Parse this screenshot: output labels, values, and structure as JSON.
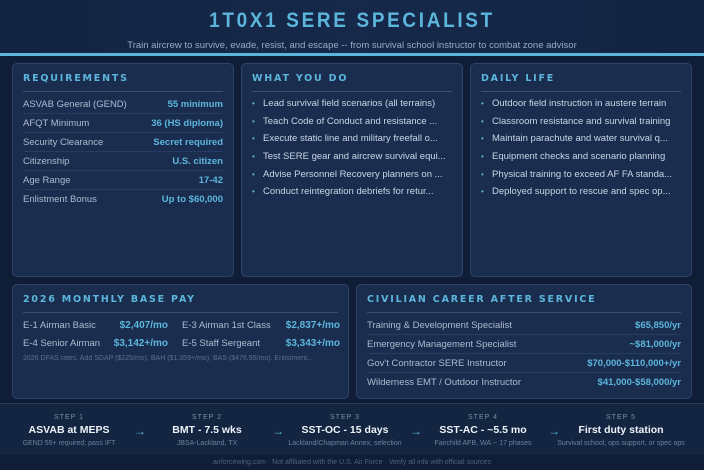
{
  "header": {
    "title": "1T0X1 SERE SPECIALIST",
    "subtitle": "Train aircrew to survive, evade, resist, and escape -- from survival school instructor to combat zone advisor"
  },
  "requirements": {
    "title": "REQUIREMENTS",
    "rows": [
      {
        "k": "ASVAB General (GEND)",
        "v": "55 minimum"
      },
      {
        "k": "AFQT Minimum",
        "v": "36 (HS diploma)"
      },
      {
        "k": "Security Clearance",
        "v": "Secret required"
      },
      {
        "k": "Citizenship",
        "v": "U.S. citizen"
      },
      {
        "k": "Age Range",
        "v": "17-42"
      },
      {
        "k": "Enlistment Bonus",
        "v": "Up to $60,000"
      }
    ]
  },
  "what_you_do": {
    "title": "WHAT YOU DO",
    "items": [
      "Lead survival field scenarios (all terrains)",
      "Teach Code of Conduct and resistance ...",
      "Execute static line and military freefall o...",
      "Test SERE gear and aircrew survival equi...",
      "Advise Personnel Recovery planners on ...",
      "Conduct reintegration debriefs for retur..."
    ]
  },
  "daily_life": {
    "title": "DAILY LIFE",
    "items": [
      "Outdoor field instruction in austere terrain",
      "Classroom resistance and survival training",
      "Maintain parachute and water survival q...",
      "Equipment checks and scenario planning",
      "Physical training to exceed AF FA standa...",
      "Deployed support to rescue and spec op..."
    ]
  },
  "pay": {
    "title": "2026 MONTHLY BASE PAY",
    "rows": [
      {
        "k": "E-1 Airman Basic",
        "v": "$2,407/mo"
      },
      {
        "k": "E-3 Airman 1st Class",
        "v": "$2,837+/mo"
      },
      {
        "k": "E-4 Senior Airman",
        "v": "$3,142+/mo"
      },
      {
        "k": "E-5 Staff Sergeant",
        "v": "$3,343+/mo"
      }
    ],
    "note": "2026 DFAS rates. Add SDAP ($225/mo), BAH ($1,359+/mo), BAS ($476.95/mo). Enlistment..."
  },
  "civilian": {
    "title": "CIVILIAN CAREER AFTER SERVICE",
    "rows": [
      {
        "k": "Training & Development Specialist",
        "v": "$65,850/yr"
      },
      {
        "k": "Emergency Management Specialist",
        "v": "~$81,000/yr"
      },
      {
        "k": "Gov't Contractor SERE Instructor",
        "v": "$70,000-$110,000+/yr"
      },
      {
        "k": "Wilderness EMT / Outdoor Instructor",
        "v": "$41,000-$58,000/yr"
      }
    ]
  },
  "steps": [
    {
      "label": "STEP 1",
      "title": "ASVAB at MEPS",
      "desc": "GEND 55+ required; pass IFT"
    },
    {
      "label": "STEP 2",
      "title": "BMT - 7.5 wks",
      "desc": "JBSA-Lackland, TX"
    },
    {
      "label": "STEP 3",
      "title": "SST-OC - 15 days",
      "desc": "Lackland/Chapman Annex, selection"
    },
    {
      "label": "STEP 4",
      "title": "SST-AC - ~5.5 mo",
      "desc": "Fairchild AFB, WA -- 17 phases"
    },
    {
      "label": "STEP 5",
      "title": "First duty station",
      "desc": "Survival school, ops support, or spec ops"
    }
  ],
  "footer": "airforcewing.com · Not affiliated with the U.S. Air Force · Verify all info with official sources",
  "colors": {
    "accent": "#5cb6dc",
    "background": "#0f1d36",
    "card": "#1a2d4f"
  }
}
